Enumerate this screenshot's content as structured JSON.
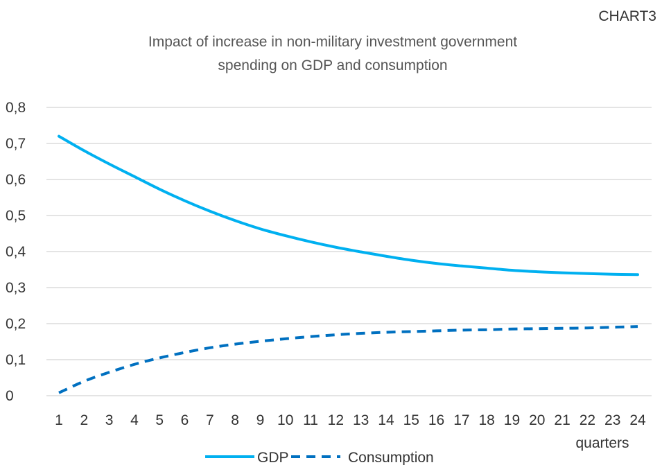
{
  "chart_label": "CHART3",
  "chart_data": {
    "type": "line",
    "title_line1": "Impact of increase in non-military investment government",
    "title_line2": "spending on GDP and consumption",
    "xlabel": "quarters",
    "ylabel": "",
    "x": [
      1,
      2,
      3,
      4,
      5,
      6,
      7,
      8,
      9,
      10,
      11,
      12,
      13,
      14,
      15,
      16,
      17,
      18,
      19,
      20,
      21,
      22,
      23,
      24
    ],
    "y_ticks": [
      "0",
      "0,1",
      "0,2",
      "0,3",
      "0,4",
      "0,5",
      "0,6",
      "0,7",
      "0,8"
    ],
    "ylim": [
      0,
      0.8
    ],
    "grid": true,
    "legend_position": "bottom",
    "series": [
      {
        "name": "GDP",
        "color": "#00B0F0",
        "style": "solid",
        "values": [
          0.72,
          0.68,
          0.643,
          0.608,
          0.573,
          0.541,
          0.512,
          0.486,
          0.463,
          0.444,
          0.427,
          0.412,
          0.399,
          0.387,
          0.376,
          0.367,
          0.36,
          0.354,
          0.348,
          0.344,
          0.341,
          0.339,
          0.337,
          0.336
        ]
      },
      {
        "name": "Consumption",
        "color": "#0070C0",
        "style": "dashed",
        "values": [
          0.008,
          0.04,
          0.065,
          0.087,
          0.105,
          0.12,
          0.133,
          0.143,
          0.151,
          0.158,
          0.164,
          0.169,
          0.173,
          0.176,
          0.178,
          0.18,
          0.182,
          0.183,
          0.185,
          0.186,
          0.187,
          0.188,
          0.19,
          0.192
        ]
      }
    ]
  }
}
